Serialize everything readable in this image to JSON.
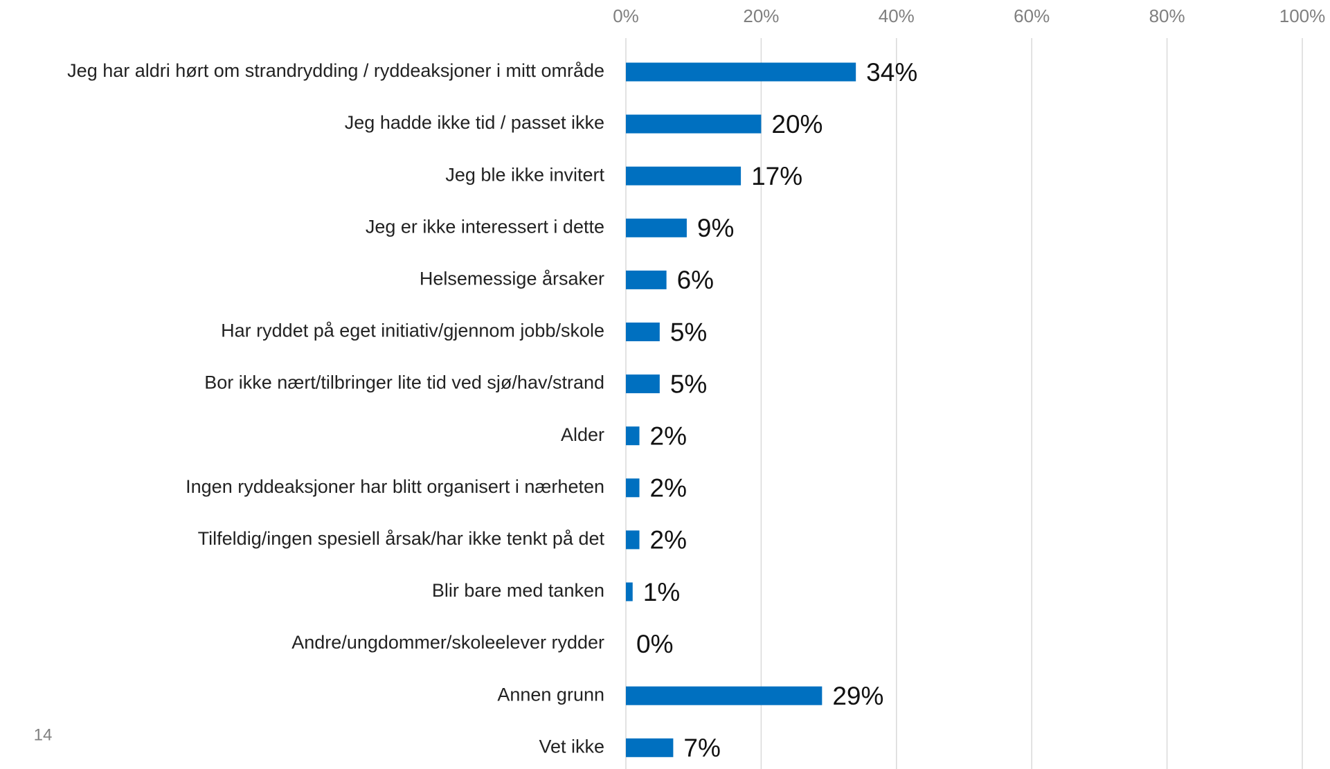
{
  "page_number": "14",
  "chart_data": {
    "type": "barh",
    "categories": [
      "Jeg har aldri hørt om strandrydding / ryddeaksjoner i mitt område",
      "Jeg hadde ikke tid / passet ikke",
      "Jeg ble ikke invitert",
      "Jeg er ikke interessert i dette",
      "Helsemessige årsaker",
      "Har ryddet på eget initiativ/gjennom jobb/skole",
      "Bor ikke nært/tilbringer lite tid ved sjø/hav/strand",
      "Alder",
      "Ingen ryddeaksjoner har blitt organisert i nærheten",
      "Tilfeldig/ingen spesiell årsak/har ikke tenkt på det",
      "Blir bare med tanken",
      "Andre/ungdommer/skoleelever rydder",
      "Annen grunn",
      "Vet ikke"
    ],
    "values": [
      34,
      20,
      17,
      9,
      6,
      5,
      5,
      2,
      2,
      2,
      1,
      0,
      29,
      7
    ],
    "value_labels": [
      "34%",
      "20%",
      "17%",
      "9%",
      "6%",
      "5%",
      "5%",
      "2%",
      "2%",
      "2%",
      "1%",
      "0%",
      "29%",
      "7%"
    ],
    "color": "#0070c0",
    "xlim": [
      0,
      100
    ],
    "xticks": [
      {
        "value": 0,
        "label": "0%"
      },
      {
        "value": 20,
        "label": "20%"
      },
      {
        "value": 40,
        "label": "40%"
      },
      {
        "value": 60,
        "label": "60%"
      },
      {
        "value": 80,
        "label": "80%"
      },
      {
        "value": 100,
        "label": "100%"
      }
    ],
    "grid": true
  }
}
